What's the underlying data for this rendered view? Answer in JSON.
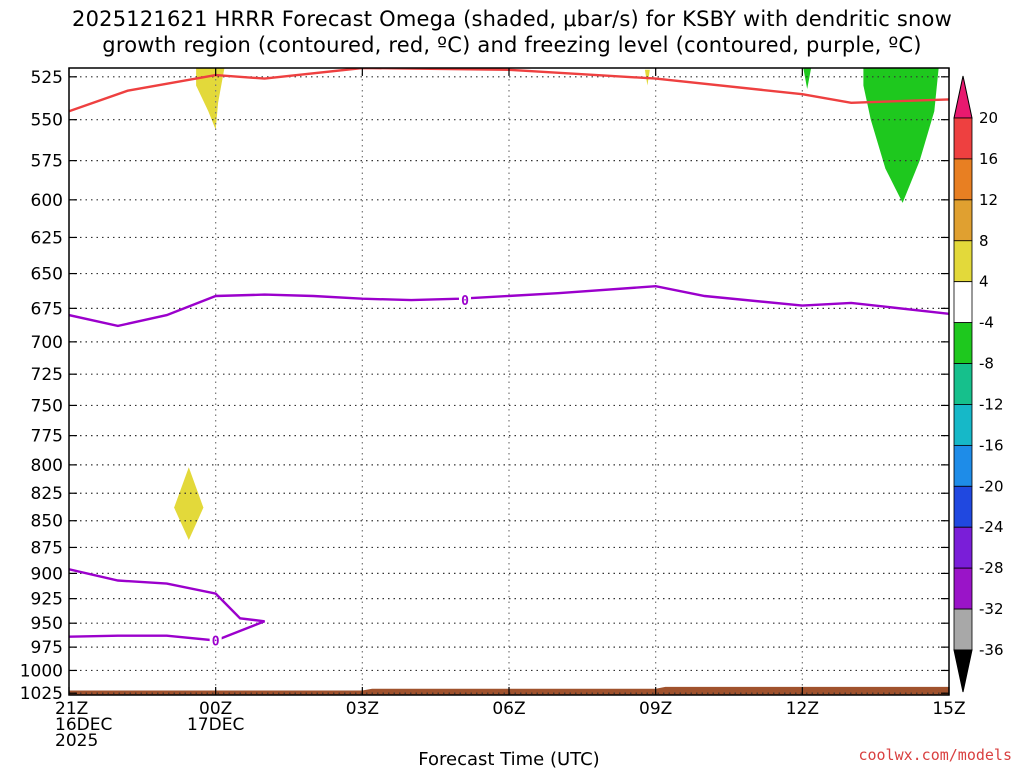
{
  "title": "2025121621 HRRR Forecast Omega (shaded, μbar/s) for KSBY with dendritic snow\ngrowth region (contoured, red, ºC) and freezing level (contoured, purple, ºC)",
  "credit": "coolwx.com/models",
  "chart_data": {
    "type": "time-height cross section",
    "xlabel": "Forecast Time (UTC)",
    "x_ticks": [
      {
        "hour": 0,
        "lines": [
          "21Z",
          "16DEC",
          "2025"
        ]
      },
      {
        "hour": 3,
        "lines": [
          "00Z",
          "17DEC"
        ]
      },
      {
        "hour": 6,
        "lines": [
          "03Z"
        ]
      },
      {
        "hour": 9,
        "lines": [
          "06Z"
        ]
      },
      {
        "hour": 12,
        "lines": [
          "09Z"
        ]
      },
      {
        "hour": 15,
        "lines": [
          "12Z"
        ]
      },
      {
        "hour": 18,
        "lines": [
          "15Z"
        ]
      }
    ],
    "xlim_hours": [
      0,
      18
    ],
    "y_ticks": [
      525,
      550,
      575,
      600,
      625,
      650,
      675,
      700,
      725,
      750,
      775,
      800,
      825,
      850,
      875,
      900,
      925,
      950,
      975,
      1000,
      1025
    ],
    "ylim_hPa": [
      520,
      1027
    ],
    "y_scale": "log-pressure, inverted",
    "grid": true,
    "colorbar": {
      "labels": [
        "20",
        "16",
        "12",
        "8",
        "4",
        "-4",
        "-8",
        "-12",
        "-16",
        "-20",
        "-24",
        "-28",
        "-32",
        "-36"
      ],
      "colors": [
        "#e8196f",
        "#ee4040",
        "#e87f22",
        "#e0a030",
        "#e3d93a",
        "#ffffff",
        "#1ec81e",
        "#16c08c",
        "#16b8c8",
        "#1e8ce8",
        "#2048e0",
        "#7a1ed8",
        "#9a14c8",
        "#a8a8a8",
        "#000000"
      ]
    },
    "dendritic_contour": {
      "color": "#ee4040",
      "points": [
        [
          0,
          545
        ],
        [
          1.2,
          533
        ],
        [
          3,
          524
        ],
        [
          4,
          526
        ],
        [
          6,
          520
        ],
        [
          9,
          521
        ],
        [
          12,
          526
        ],
        [
          15,
          535
        ],
        [
          16,
          540
        ],
        [
          18,
          538
        ]
      ]
    },
    "freezing_level_contours": {
      "color": "#9b00cc",
      "label": "0",
      "upper": [
        [
          0,
          680
        ],
        [
          1,
          688
        ],
        [
          2,
          680
        ],
        [
          3,
          666
        ],
        [
          4,
          665
        ],
        [
          5,
          666
        ],
        [
          6,
          668
        ],
        [
          7,
          669
        ],
        [
          8,
          668
        ],
        [
          10,
          664
        ],
        [
          12,
          659
        ],
        [
          13,
          666
        ],
        [
          15,
          673
        ],
        [
          16,
          671
        ],
        [
          18,
          679
        ]
      ],
      "upper_label_at": [
        8.1,
        669
      ],
      "lower": [
        [
          0,
          964
        ],
        [
          1,
          963
        ],
        [
          2,
          963
        ],
        [
          3,
          968
        ],
        [
          4,
          948
        ],
        [
          3.5,
          945
        ],
        [
          3,
          920
        ],
        [
          2,
          910
        ],
        [
          1,
          907
        ],
        [
          0,
          896
        ]
      ],
      "lower_label_at": [
        3,
        968
      ]
    },
    "shaded_regions": [
      {
        "color": "#e3d93a",
        "points": [
          [
            2.6,
            517
          ],
          [
            3.2,
            517
          ],
          [
            3.05,
            540
          ],
          [
            3.0,
            556
          ],
          [
            2.85,
            545
          ],
          [
            2.6,
            530
          ]
        ]
      },
      {
        "color": "#e3d93a",
        "points": [
          [
            2.45,
            802
          ],
          [
            2.75,
            838
          ],
          [
            2.45,
            868
          ],
          [
            2.15,
            838
          ]
        ]
      },
      {
        "color": "#1ec81e",
        "points": [
          [
            16.25,
            517
          ],
          [
            17.8,
            517
          ],
          [
            17.7,
            545
          ],
          [
            17.4,
            575
          ],
          [
            17.05,
            602
          ],
          [
            16.7,
            580
          ],
          [
            16.4,
            550
          ],
          [
            16.25,
            530
          ]
        ]
      },
      {
        "color": "#1ec81e",
        "points": [
          [
            15.0,
            517
          ],
          [
            15.2,
            517
          ],
          [
            15.1,
            532
          ]
        ]
      },
      {
        "color": "#e3d93a",
        "points": [
          [
            11.78,
            521
          ],
          [
            11.88,
            521
          ],
          [
            11.83,
            530
          ]
        ]
      }
    ],
    "terrain": {
      "color": "#a0522d",
      "points": [
        [
          0,
          1022
        ],
        [
          6,
          1022
        ],
        [
          6.2,
          1020
        ],
        [
          12,
          1020
        ],
        [
          12.2,
          1018
        ],
        [
          18,
          1018
        ]
      ]
    }
  }
}
